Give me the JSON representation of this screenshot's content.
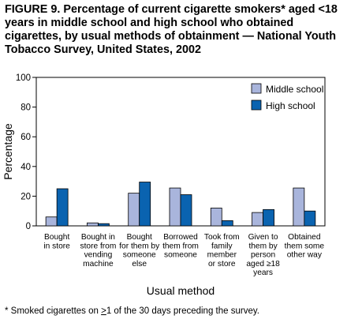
{
  "figure": {
    "title": "FIGURE 9. Percentage of current cigarette smokers* aged <18 years in middle school and high school who obtained cigarettes, by usual methods of obtainment — National Youth Tobacco Survey, United States, 2002",
    "footnote_prefix": "* Smoked cigarettes on ",
    "footnote_symbol": ">",
    "footnote_suffix": "1 of the 30 days preceding the survey."
  },
  "chart_data": {
    "type": "bar",
    "title": "",
    "xlabel": "Usual method",
    "ylabel": "Percentage",
    "ylim": [
      0,
      100
    ],
    "yticks": [
      0,
      20,
      40,
      60,
      80,
      100
    ],
    "grid": false,
    "legend_position": "top-right",
    "categories": [
      [
        "Bought",
        "in store"
      ],
      [
        "Bought in",
        "store from",
        "vending",
        "machine"
      ],
      [
        "Bought",
        "for them by",
        "someone",
        "else"
      ],
      [
        "Borrowed",
        "them from",
        "someone"
      ],
      [
        "Took from",
        "family",
        "member",
        "or store"
      ],
      [
        "Given to",
        "them by",
        "person",
        "aged ≥18",
        "years"
      ],
      [
        "Obtained",
        "them some",
        "other way"
      ]
    ],
    "series": [
      {
        "name": "Middle school",
        "color": "#a9b5dc",
        "values": [
          6,
          2,
          22,
          25.5,
          12,
          9,
          25.5
        ]
      },
      {
        "name": "High school",
        "color": "#0a63b0",
        "values": [
          25,
          1.5,
          29.5,
          21,
          3.5,
          11,
          10
        ]
      }
    ]
  }
}
